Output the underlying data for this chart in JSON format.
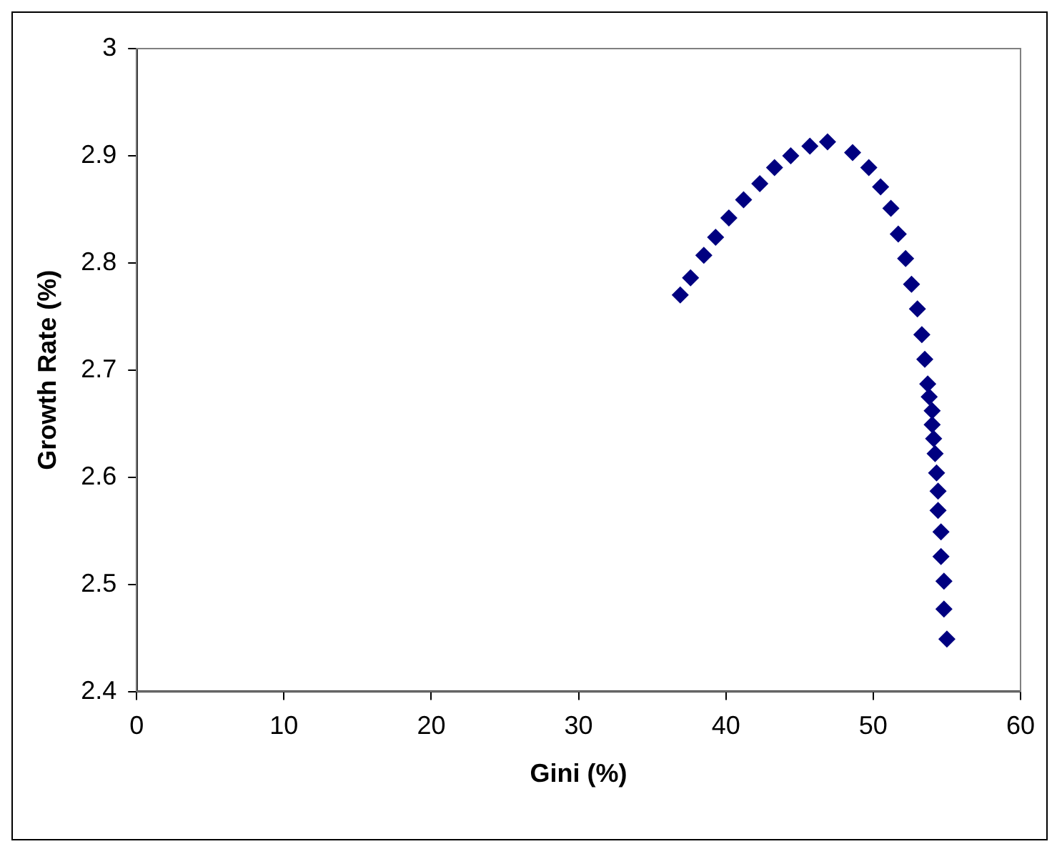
{
  "chart_data": {
    "type": "scatter",
    "xlabel": "Gini (%)",
    "ylabel": "Growth Rate (%)",
    "xlim": [
      0,
      60
    ],
    "xticks": [
      0,
      10,
      20,
      30,
      40,
      50,
      60
    ],
    "ylim": [
      2.4,
      3
    ],
    "yticks": [
      {
        "value": 2.4,
        "label": "2.4"
      },
      {
        "value": 2.5,
        "label": "2.5"
      },
      {
        "value": 2.6,
        "label": "2.6"
      },
      {
        "value": 2.7,
        "label": "2.7"
      },
      {
        "value": 2.8,
        "label": "2.8"
      },
      {
        "value": 2.9,
        "label": "2.9"
      },
      {
        "value": 3,
        "label": "3"
      }
    ],
    "grid": false,
    "legend": false,
    "marker": "diamond",
    "series": [
      {
        "color": "#000080",
        "x": [
          36.9,
          37.6,
          38.5,
          39.3,
          40.2,
          41.2,
          42.3,
          43.3,
          44.4,
          45.7,
          46.9,
          48.6,
          49.7,
          50.5,
          51.2,
          51.7,
          52.2,
          52.6,
          53.0,
          53.3,
          53.5,
          53.7,
          53.8,
          54.0,
          54.0,
          54.1,
          54.2,
          54.3,
          54.4,
          54.4,
          54.6,
          54.6,
          54.8,
          54.8,
          55.0
        ],
        "values": [
          2.77,
          2.786,
          2.807,
          2.824,
          2.842,
          2.859,
          2.874,
          2.889,
          2.9,
          2.909,
          2.913,
          2.903,
          2.889,
          2.871,
          2.851,
          2.827,
          2.804,
          2.78,
          2.757,
          2.733,
          2.71,
          2.687,
          2.675,
          2.662,
          2.649,
          2.636,
          2.622,
          2.604,
          2.587,
          2.569,
          2.549,
          2.526,
          2.503,
          2.477,
          2.449
        ]
      }
    ]
  }
}
